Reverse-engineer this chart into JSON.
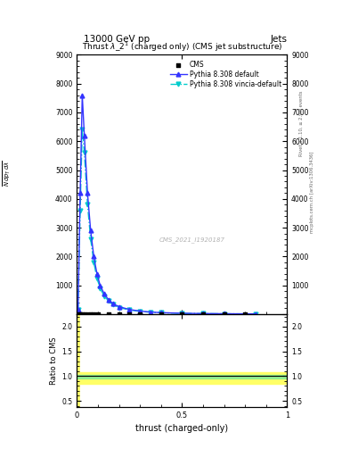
{
  "title": "13000 GeV pp",
  "title_right": "Jets",
  "plot_title": "Thrust $\\lambda$_2$^1$ (charged only) (CMS jet substructure)",
  "xlabel": "thrust (charged-only)",
  "ylabel_ratio": "Ratio to CMS",
  "watermark": "CMS_2021_I1920187",
  "rivet_label": "Rivet 3.1.10, ≥ 2.9M events",
  "mcplots_label": "mcplots.cern.ch [arXiv:1306.3436]",
  "ylim_main": [
    0,
    9000
  ],
  "ylim_ratio": [
    0.38,
    2.25
  ],
  "yticks_main": [
    0,
    1000,
    2000,
    3000,
    4000,
    5000,
    6000,
    7000,
    8000,
    9000
  ],
  "yticks_ratio": [
    0.5,
    1.0,
    1.5,
    2.0
  ],
  "xlim": [
    0,
    1
  ],
  "cms_x": [
    0.005,
    0.015,
    0.025,
    0.04,
    0.06,
    0.08,
    0.1,
    0.15,
    0.2,
    0.25,
    0.3,
    0.4,
    0.5,
    0.6,
    0.7,
    0.8
  ],
  "cms_y": [
    5,
    5,
    5,
    5,
    5,
    5,
    5,
    5,
    5,
    5,
    5,
    5,
    5,
    5,
    5,
    5
  ],
  "pythia_default_x": [
    0.005,
    0.015,
    0.025,
    0.035,
    0.05,
    0.065,
    0.08,
    0.095,
    0.11,
    0.13,
    0.15,
    0.17,
    0.2,
    0.25,
    0.3,
    0.35,
    0.4,
    0.5,
    0.6,
    0.7,
    0.85
  ],
  "pythia_default_y": [
    140,
    4200,
    7600,
    6200,
    4200,
    2900,
    2000,
    1400,
    1000,
    700,
    500,
    370,
    260,
    160,
    105,
    72,
    52,
    30,
    20,
    14,
    8
  ],
  "pythia_vincia_x": [
    0.005,
    0.015,
    0.025,
    0.035,
    0.05,
    0.065,
    0.08,
    0.095,
    0.11,
    0.13,
    0.15,
    0.17,
    0.2,
    0.25,
    0.3,
    0.35,
    0.4,
    0.5,
    0.6,
    0.7,
    0.85
  ],
  "pythia_vincia_y": [
    140,
    3600,
    6400,
    5600,
    3800,
    2600,
    1800,
    1250,
    900,
    620,
    450,
    330,
    230,
    145,
    95,
    65,
    47,
    27,
    18,
    12,
    7
  ],
  "color_cms": "#000000",
  "color_pythia_default": "#3333ff",
  "color_pythia_vincia": "#00cccc",
  "color_ratio_green": "#90ee90",
  "color_ratio_yellow": "#ffff66",
  "background_color": "#ffffff"
}
